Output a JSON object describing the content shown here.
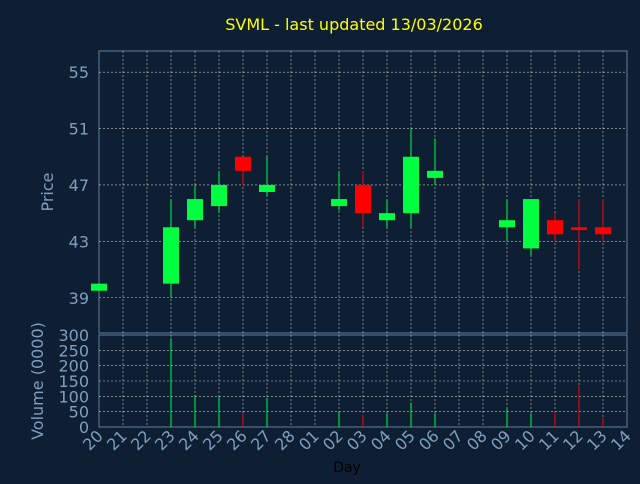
{
  "chart_data": {
    "type": "candlestick",
    "title": "SVML - last updated 13/03/2026",
    "colors": {
      "background": "#0f1f33",
      "title": "#ffff00",
      "axis_text": "#7f9fbf",
      "up": "#00ff40",
      "down": "#ff0000",
      "grid": "#ffffff"
    },
    "days": [
      "20",
      "21",
      "22",
      "23",
      "24",
      "25",
      "26",
      "27",
      "28",
      "01",
      "02",
      "03",
      "04",
      "05",
      "06",
      "07",
      "08",
      "09",
      "10",
      "11",
      "12",
      "13",
      "14"
    ],
    "xlabel": "Day",
    "price_panel": {
      "ylabel": "Price",
      "ylim": [
        36.5,
        56.5
      ],
      "yticks": [
        39,
        43,
        47,
        51,
        55
      ],
      "candles": [
        {
          "day": "20",
          "open": 39.5,
          "high": 40.0,
          "low": 39.5,
          "close": 40.0
        },
        {
          "day": "23",
          "open": 40.0,
          "high": 46.0,
          "low": 39.0,
          "close": 44.0
        },
        {
          "day": "24",
          "open": 44.5,
          "high": 47.0,
          "low": 44.0,
          "close": 46.0
        },
        {
          "day": "25",
          "open": 45.5,
          "high": 48.0,
          "low": 45.0,
          "close": 47.0
        },
        {
          "day": "26",
          "open": 49.0,
          "high": 49.0,
          "low": 47.0,
          "close": 48.0
        },
        {
          "day": "27",
          "open": 46.5,
          "high": 49.0,
          "low": 46.2,
          "close": 47.0
        },
        {
          "day": "02",
          "open": 45.5,
          "high": 48.0,
          "low": 45.2,
          "close": 46.0
        },
        {
          "day": "03",
          "open": 47.0,
          "high": 48.0,
          "low": 44.0,
          "close": 45.0
        },
        {
          "day": "04",
          "open": 44.5,
          "high": 46.0,
          "low": 44.0,
          "close": 45.0
        },
        {
          "day": "05",
          "open": 45.0,
          "high": 51.0,
          "low": 44.0,
          "close": 49.0
        },
        {
          "day": "06",
          "open": 47.5,
          "high": 50.3,
          "low": 47.0,
          "close": 48.0
        },
        {
          "day": "09",
          "open": 44.0,
          "high": 46.0,
          "low": 43.0,
          "close": 44.5
        },
        {
          "day": "10",
          "open": 42.5,
          "high": 46.0,
          "low": 42.0,
          "close": 46.0
        },
        {
          "day": "11",
          "open": 44.5,
          "high": 45.0,
          "low": 43.0,
          "close": 43.5
        },
        {
          "day": "12",
          "open": 44.0,
          "high": 46.0,
          "low": 41.0,
          "close": 43.8
        },
        {
          "day": "13",
          "open": 44.0,
          "high": 46.0,
          "low": 43.0,
          "close": 43.5
        }
      ]
    },
    "volume_panel": {
      "ylabel": "Volume (0000)",
      "ylim": [
        0,
        300
      ],
      "yticks": [
        0,
        50,
        100,
        150,
        200,
        250,
        300
      ],
      "bars": [
        {
          "day": "23",
          "value": 290,
          "direction": "up"
        },
        {
          "day": "24",
          "value": 105,
          "direction": "up"
        },
        {
          "day": "25",
          "value": 100,
          "direction": "up"
        },
        {
          "day": "26",
          "value": 45,
          "direction": "down"
        },
        {
          "day": "27",
          "value": 95,
          "direction": "up"
        },
        {
          "day": "02",
          "value": 50,
          "direction": "up"
        },
        {
          "day": "03",
          "value": 40,
          "direction": "down"
        },
        {
          "day": "04",
          "value": 45,
          "direction": "up"
        },
        {
          "day": "05",
          "value": 80,
          "direction": "up"
        },
        {
          "day": "06",
          "value": 45,
          "direction": "up"
        },
        {
          "day": "09",
          "value": 60,
          "direction": "up"
        },
        {
          "day": "10",
          "value": 45,
          "direction": "up"
        },
        {
          "day": "11",
          "value": 50,
          "direction": "down"
        },
        {
          "day": "12",
          "value": 135,
          "direction": "down"
        },
        {
          "day": "13",
          "value": 30,
          "direction": "down"
        }
      ]
    }
  }
}
